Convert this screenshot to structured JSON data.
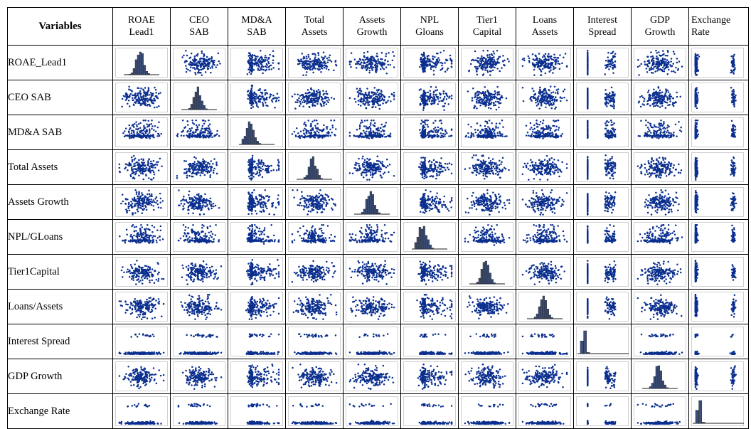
{
  "chart_data": {
    "type": "scatter",
    "subtype": "scatterplot-matrix",
    "corner_label": "Variables",
    "columns": [
      {
        "line1": "ROAE",
        "line2": "Lead1"
      },
      {
        "line1": "CEO",
        "line2": "SAB"
      },
      {
        "line1": "MD&A",
        "line2": "SAB"
      },
      {
        "line1": "Total",
        "line2": "Assets"
      },
      {
        "line1": "Assets",
        "line2": "Growth"
      },
      {
        "line1": "NPL",
        "line2": "Gloans"
      },
      {
        "line1": "Tier1",
        "line2": "Capital"
      },
      {
        "line1": "Loans",
        "line2": "Assets"
      },
      {
        "line1": "Interest",
        "line2": "Spread"
      },
      {
        "line1": "GDP",
        "line2": "Growth"
      },
      {
        "line1": "Exchange",
        "line2": "Rate"
      }
    ],
    "rows": [
      "ROAE_Lead1",
      "CEO SAB",
      "MD&A SAB",
      "Total Assets",
      "Assets Growth",
      "NPL/GLoans",
      "Tier1Capital",
      "Loans/Assets",
      "Interest Spread",
      "GDP Growth",
      "Exchange Rate"
    ],
    "diagonal": "histogram",
    "off_diagonal": "scatter",
    "point_color": "#0b2f8f",
    "bar_color": "#3c4f7a",
    "grid": false
  }
}
